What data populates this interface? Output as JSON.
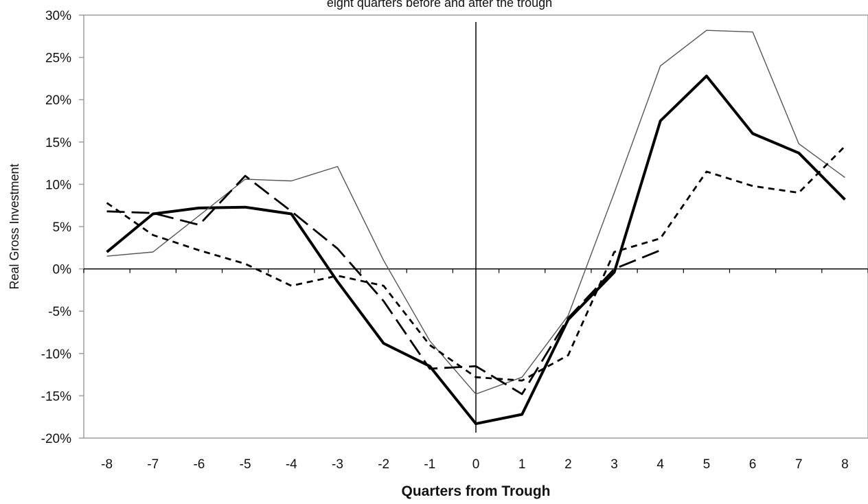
{
  "chart_data": {
    "type": "line",
    "title": "eight quarters before and after the trough",
    "xlabel": "Quarters from Trough",
    "ylabel": "Real Gross Investment",
    "x": [
      -8,
      -7,
      -6,
      -5,
      -4,
      -3,
      -2,
      -1,
      0,
      1,
      2,
      3,
      4,
      5,
      6,
      7,
      8
    ],
    "x_tick_labels": [
      "-8",
      "-7",
      "-6",
      "-5",
      "-4",
      "-3",
      "-2",
      "-1",
      "0",
      "1",
      "2",
      "3",
      "4",
      "5",
      "6",
      "7",
      "8"
    ],
    "y_ticks": [
      30,
      25,
      20,
      15,
      10,
      5,
      0,
      -5,
      -10,
      -15,
      -20
    ],
    "y_tick_labels": [
      "30%",
      "25%",
      "20%",
      "15%",
      "10%",
      "5%",
      "0%",
      "-5%",
      "-10%",
      "-15%",
      "-20%"
    ],
    "ylim": [
      -20,
      30
    ],
    "xlim": [
      -8.5,
      8.5
    ],
    "grid": false,
    "legend": "none",
    "series": [
      {
        "style": "thick-solid",
        "color": "#000000",
        "values": [
          2.0,
          6.5,
          7.2,
          7.3,
          6.5,
          -1.5,
          -8.8,
          -11.5,
          -18.3,
          -17.2,
          -6.0,
          -0.4,
          17.5,
          22.8,
          16.0,
          13.7,
          8.2
        ]
      },
      {
        "style": "thin-solid",
        "color": "#555555",
        "values": [
          1.5,
          2.0,
          6.3,
          10.6,
          10.4,
          12.1,
          1.0,
          -8.5,
          -14.8,
          -12.8,
          -5.5,
          9.0,
          24.0,
          28.2,
          28.0,
          14.8,
          10.8
        ]
      },
      {
        "style": "long-dash",
        "color": "#000000",
        "values": [
          6.8,
          6.6,
          5.2,
          11.0,
          6.8,
          2.4,
          -3.8,
          -11.8,
          -11.5,
          -14.8,
          -5.8,
          0.0,
          2.2,
          null,
          null,
          null,
          14.8
        ]
      },
      {
        "style": "short-dash",
        "color": "#000000",
        "values": [
          7.8,
          4.0,
          2.2,
          0.6,
          -2.0,
          -0.8,
          -2.0,
          -9.0,
          -12.8,
          -13.2,
          -10.2,
          2.0,
          3.6,
          11.5,
          9.8,
          9.0,
          14.5
        ]
      }
    ]
  }
}
